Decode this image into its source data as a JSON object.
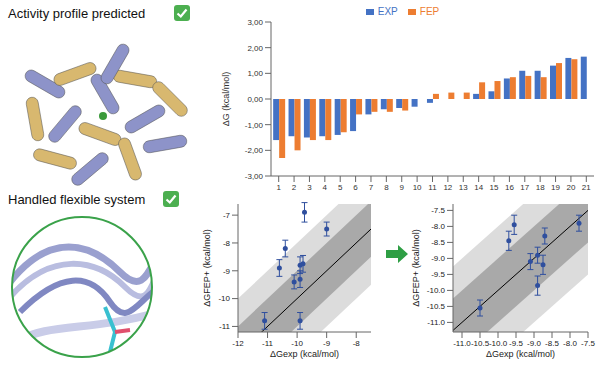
{
  "captions": [
    "Activity profile predicted",
    "Handled flexible system"
  ],
  "chart_data": [
    {
      "type": "bar",
      "y_label": "ΔG (kcal/mol)",
      "categories": [
        "1",
        "2",
        "3",
        "4",
        "5",
        "6",
        "7",
        "8",
        "9",
        "10",
        "11",
        "12",
        "13",
        "14",
        "15",
        "16",
        "17",
        "18",
        "19",
        "20",
        "21"
      ],
      "series": [
        {
          "name": "EXP",
          "color": "#4472c4",
          "values": [
            -1.6,
            -1.45,
            -1.5,
            -1.45,
            -1.4,
            -1.25,
            -0.6,
            -0.4,
            -0.35,
            -0.3,
            -0.15,
            0,
            0,
            0.2,
            0.3,
            0.8,
            1.1,
            1.1,
            1.3,
            1.6,
            1.65
          ]
        },
        {
          "name": "FEP",
          "color": "#ed7d31",
          "values": [
            -2.3,
            -2.0,
            -1.6,
            -1.6,
            -1.3,
            -0.6,
            -0.5,
            -0.5,
            -0.45,
            0,
            0.2,
            0.25,
            0.25,
            0.65,
            0.7,
            0.85,
            0.9,
            0.85,
            1.4,
            1.55,
            null
          ]
        }
      ],
      "ylim": [
        -3,
        3
      ],
      "yticks": [
        {
          "value": -3,
          "label": "-3,00"
        },
        {
          "value": -2,
          "label": "-2,00"
        },
        {
          "value": -1,
          "label": "-1,00"
        },
        {
          "value": 0,
          "label": "0,00"
        },
        {
          "value": 1,
          "label": "1,00"
        },
        {
          "value": 2,
          "label": "2,00"
        },
        {
          "value": 3,
          "label": "3,00"
        }
      ],
      "grid": false,
      "legend": "top"
    },
    {
      "type": "scatter",
      "x_label": "ΔGexp (kcal/mol)",
      "y_label": "ΔGFEP+ (kcal/mol)",
      "color": "#2f4f9e",
      "x": [
        -11.1,
        -10.4,
        -10.6,
        -10.1,
        -9.9,
        -9.9,
        -9.8,
        -9.75,
        -9.9,
        -9.0
      ],
      "y": [
        -10.8,
        -8.2,
        -8.9,
        -9.4,
        -9.3,
        -8.8,
        -8.75,
        -6.9,
        -10.8,
        -7.5
      ],
      "errors": [
        0.3,
        0.3,
        0.3,
        0.25,
        0.3,
        0.3,
        0.3,
        0.35,
        0.3,
        0.25
      ],
      "bands": [
        1,
        2
      ],
      "xlim": [
        -12,
        -7.5
      ],
      "ylim": [
        -11.2,
        -6.6
      ],
      "xticks": [
        -12,
        -11,
        -10,
        -9,
        -8
      ],
      "yticks": [
        -11,
        -10,
        -9,
        -8,
        -7
      ],
      "grid": false
    },
    {
      "type": "scatter",
      "x_label": "ΔGexp (kcal/mol)",
      "y_label": "ΔGFEP+ (kcal/mol)",
      "color": "#2f4f9e",
      "x": [
        -10.5,
        -9.7,
        -9.55,
        -9.1,
        -8.9,
        -8.9,
        -8.75,
        -8.7,
        -7.75
      ],
      "y": [
        -10.55,
        -8.45,
        -7.95,
        -9.1,
        -8.9,
        -9.85,
        -9.2,
        -8.3,
        -7.9
      ],
      "errors": [
        0.25,
        0.3,
        0.3,
        0.25,
        0.25,
        0.3,
        0.3,
        0.25,
        0.25
      ],
      "bands": [
        1,
        2
      ],
      "xlim": [
        -11.25,
        -7.5
      ],
      "ylim": [
        -11.3,
        -7.3
      ],
      "xticks": [
        {
          "value": -11,
          "label": "-11.0"
        },
        {
          "value": -10.5,
          "label": "-10.5"
        },
        {
          "value": -10,
          "label": "-10.0"
        },
        {
          "value": -9.5,
          "label": "-9.5"
        },
        {
          "value": -9,
          "label": "-9.0"
        },
        {
          "value": -8.5,
          "label": "-8.5"
        },
        {
          "value": -8,
          "label": "-8.0"
        },
        {
          "value": -7.5,
          "label": "-7.5"
        }
      ],
      "yticks": [
        {
          "value": -11,
          "label": "-11.0"
        },
        {
          "value": -10.5,
          "label": "-10.5"
        },
        {
          "value": -10,
          "label": "-10.0"
        },
        {
          "value": -9.5,
          "label": "-9.5"
        },
        {
          "value": -9,
          "label": "-9.0"
        },
        {
          "value": -8.5,
          "label": "-8.5"
        },
        {
          "value": -8,
          "label": "-8.0"
        },
        {
          "value": -7.5,
          "label": "-7.5"
        }
      ],
      "grid": false
    }
  ]
}
